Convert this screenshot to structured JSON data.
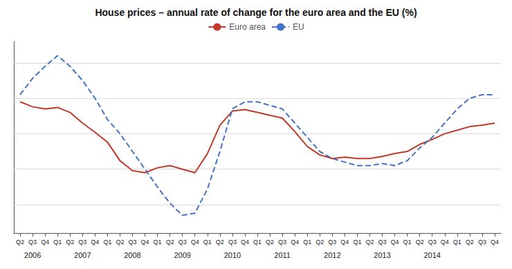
{
  "chart_data": {
    "type": "line",
    "title": "House prices – annual rate of change for the euro area and the EU (%)",
    "categories": [
      "Q2",
      "Q3",
      "Q4",
      "Q1",
      "Q2",
      "Q3",
      "Q4",
      "Q1",
      "Q2",
      "Q3",
      "Q4",
      "Q1",
      "Q2",
      "Q3",
      "Q4",
      "Q1",
      "Q2",
      "Q3",
      "Q4",
      "Q1",
      "Q2",
      "Q3",
      "Q4",
      "Q1",
      "Q2",
      "Q3",
      "Q4",
      "Q1",
      "Q2",
      "Q3",
      "Q4",
      "Q1",
      "Q2",
      "Q3",
      "Q4",
      "Q1",
      "Q2",
      "Q3",
      "Q4"
    ],
    "series": [
      {
        "name": "Euro area",
        "color": "#c0392b",
        "line_style": "solid",
        "values": [
          4.5,
          3.8,
          3.5,
          3.7,
          3.0,
          1.5,
          0.2,
          -1.2,
          -3.8,
          -5.2,
          -5.5,
          -4.8,
          -4.5,
          -5.0,
          -5.5,
          -2.8,
          1.2,
          3.2,
          3.4,
          3.0,
          2.6,
          2.2,
          0.3,
          -1.8,
          -3.0,
          -3.5,
          -3.3,
          -3.5,
          -3.5,
          -3.2,
          -2.8,
          -2.5,
          -1.5,
          -0.8,
          0.0,
          0.5,
          1.0,
          1.2,
          1.5
        ]
      },
      {
        "name": "EU",
        "color": "#4472c4",
        "line_style": "dashed",
        "values": [
          5.5,
          7.8,
          9.5,
          11.0,
          9.5,
          7.5,
          5.0,
          2.0,
          0.0,
          -2.5,
          -5.0,
          -7.5,
          -9.8,
          -11.5,
          -11.2,
          -7.8,
          -2.5,
          3.5,
          4.5,
          4.5,
          4.0,
          3.5,
          1.5,
          -0.5,
          -2.5,
          -3.5,
          -4.0,
          -4.5,
          -4.5,
          -4.2,
          -4.5,
          -3.8,
          -2.0,
          -0.5,
          1.5,
          3.5,
          5.0,
          5.5,
          5.5
        ]
      }
    ],
    "ylim": [
      -14,
      13
    ],
    "yticks": [
      -10,
      -5,
      0,
      5,
      10
    ],
    "grid": true,
    "legend": "upper center",
    "tick_labels": "x",
    "annotations": [
      {
        "text": "2006",
        "x": 1
      },
      {
        "text": "2007",
        "x": 5
      },
      {
        "text": "2008",
        "x": 9
      },
      {
        "text": "2009",
        "x": 13
      },
      {
        "text": "2010",
        "x": 17
      },
      {
        "text": "2011",
        "x": 21
      },
      {
        "text": "2012",
        "x": 25
      },
      {
        "text": "2013",
        "x": 29
      },
      {
        "text": "2014",
        "x": 33
      }
    ]
  }
}
